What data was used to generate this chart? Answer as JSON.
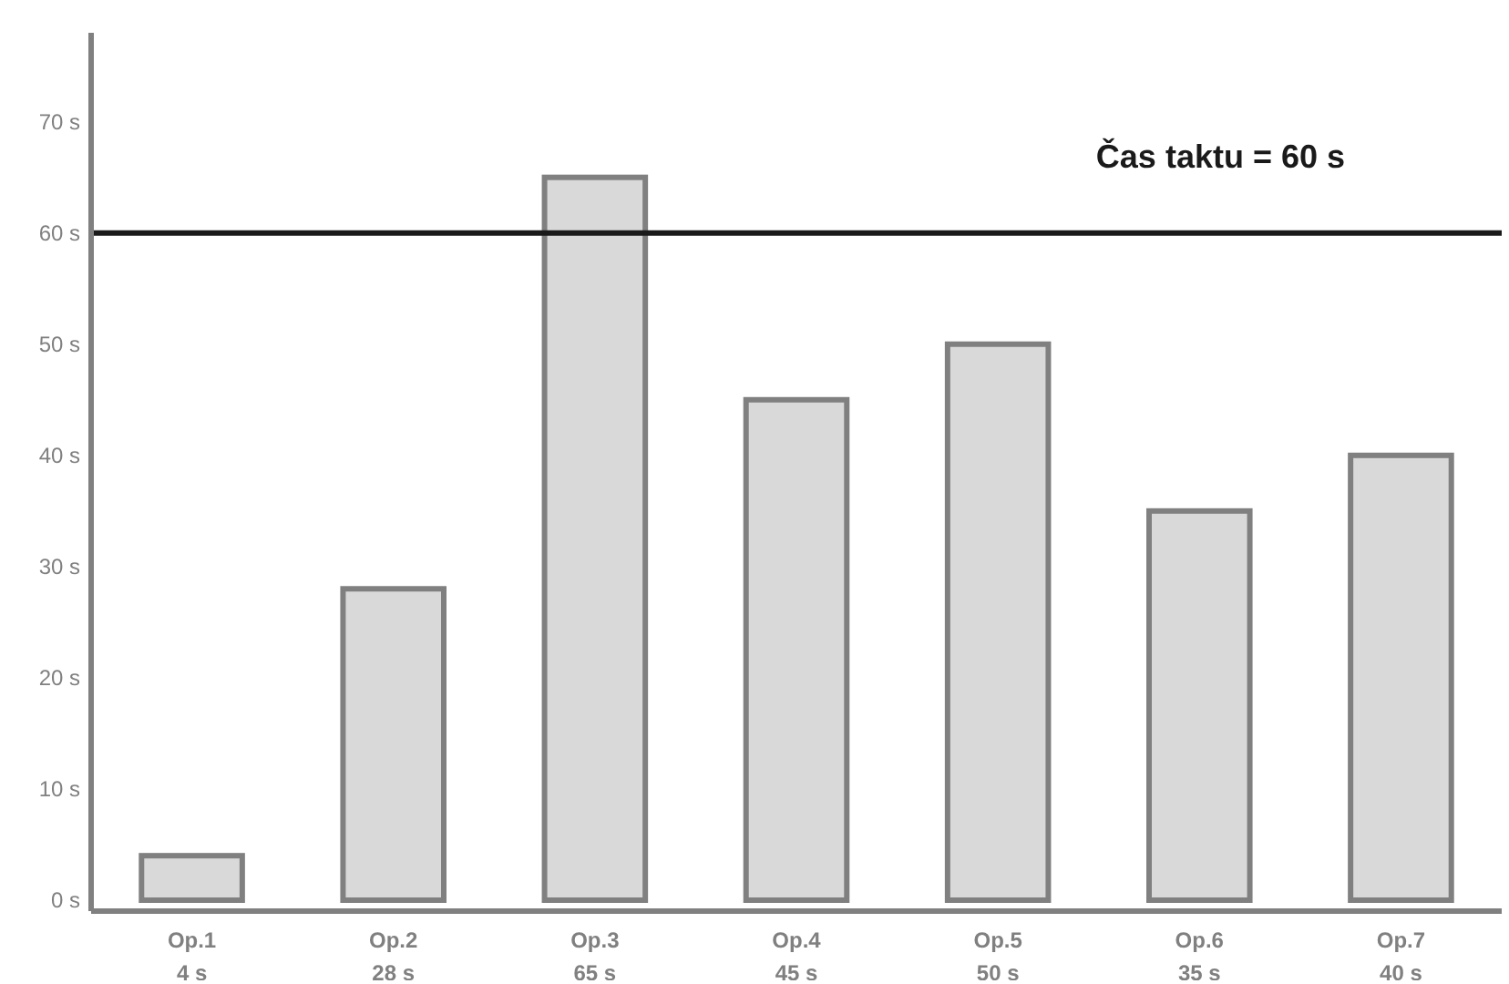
{
  "chart_data": {
    "type": "bar",
    "categories": [
      "Op.1",
      "Op.2",
      "Op.3",
      "Op.4",
      "Op.5",
      "Op.6",
      "Op.7"
    ],
    "values": [
      4,
      28,
      65,
      45,
      50,
      35,
      40
    ],
    "value_labels": [
      "4 s",
      "28 s",
      "65 s",
      "45 s",
      "50 s",
      "35 s",
      "40 s"
    ],
    "color": "#d9d9d9",
    "ylim": [
      0,
      78
    ],
    "yticks": [
      {
        "value": 0,
        "label": "0 s"
      },
      {
        "value": 10,
        "label": "10 s"
      },
      {
        "value": 20,
        "label": "20 s"
      },
      {
        "value": 30,
        "label": "30 s"
      },
      {
        "value": 40,
        "label": "40 s"
      },
      {
        "value": 50,
        "label": "50 s"
      },
      {
        "value": 60,
        "label": "60 s"
      },
      {
        "value": 70,
        "label": "70 s"
      }
    ],
    "ref_lines": [
      {
        "axis": "y",
        "value": 60,
        "label": "Čas taktu = 60 s",
        "color": "#1a1a1a"
      }
    ],
    "grid": false
  }
}
